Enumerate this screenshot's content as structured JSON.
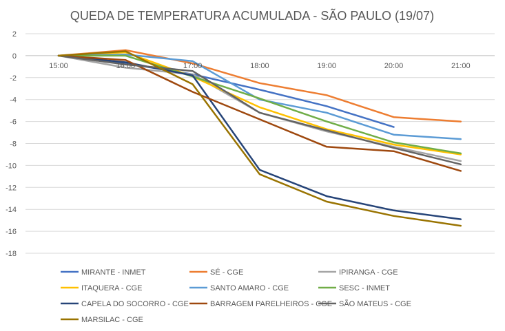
{
  "chart_data": {
    "type": "line",
    "title": "QUEDA DE TEMPERATURA ACUMULADA - SÃO PAULO (19/07)",
    "xlabel": "",
    "ylabel": "",
    "categories": [
      "15:00",
      "16:00",
      "17:00",
      "18:00",
      "19:00",
      "20:00",
      "21:00"
    ],
    "ylim": [
      -18,
      2
    ],
    "yticks": [
      2,
      0,
      -2,
      -4,
      -6,
      -8,
      -10,
      -12,
      -14,
      -16,
      -18
    ],
    "grid": true,
    "legend_position": "bottom",
    "series": [
      {
        "name": "MIRANTE - INMET",
        "color": "#4472C4",
        "values": [
          0,
          -0.7,
          -1.7,
          -3.1,
          -4.6,
          -6.5,
          null
        ]
      },
      {
        "name": "SÉ - CGE",
        "color": "#ED7D31",
        "values": [
          0,
          0.5,
          -0.7,
          -2.5,
          -3.6,
          -5.6,
          -6.0
        ]
      },
      {
        "name": "IPIRANGA - CGE",
        "color": "#A5A5A5",
        "values": [
          0,
          -1.1,
          -1.7,
          -5.2,
          -6.9,
          -8.3,
          -9.6
        ]
      },
      {
        "name": "ITAQUERA - CGE",
        "color": "#FFC000",
        "values": [
          0,
          0.3,
          -1.9,
          -4.7,
          -6.7,
          -8.1,
          -9.0
        ]
      },
      {
        "name": "SANTO AMARO - CGE",
        "color": "#5B9BD5",
        "values": [
          0,
          0.1,
          -0.5,
          -4.0,
          -5.2,
          -7.2,
          -7.6
        ]
      },
      {
        "name": "SESC - INMET",
        "color": "#70AD47",
        "values": [
          0,
          0,
          -1.9,
          -3.9,
          -6.0,
          -7.9,
          -8.9
        ]
      },
      {
        "name": "CAPELA DO SOCORRO - CGE",
        "color": "#264478",
        "values": [
          0,
          -0.6,
          -1.8,
          -10.4,
          -12.8,
          -14.1,
          -14.9
        ]
      },
      {
        "name": "BARRAGEM PARELHEIROS - CGE",
        "color": "#9E480E",
        "values": [
          0,
          -0.4,
          -3.3,
          -5.8,
          -8.3,
          -8.7,
          -10.5
        ]
      },
      {
        "name": "SÃO MATEUS - CGE",
        "color": "#636363",
        "values": [
          0,
          -0.8,
          -1.4,
          -5.2,
          -6.8,
          -8.4,
          -9.9
        ]
      },
      {
        "name": "MARSILAC - CGE",
        "color": "#997300",
        "values": [
          0,
          0.4,
          -2.6,
          -10.8,
          -13.3,
          -14.6,
          -15.5
        ]
      }
    ]
  }
}
